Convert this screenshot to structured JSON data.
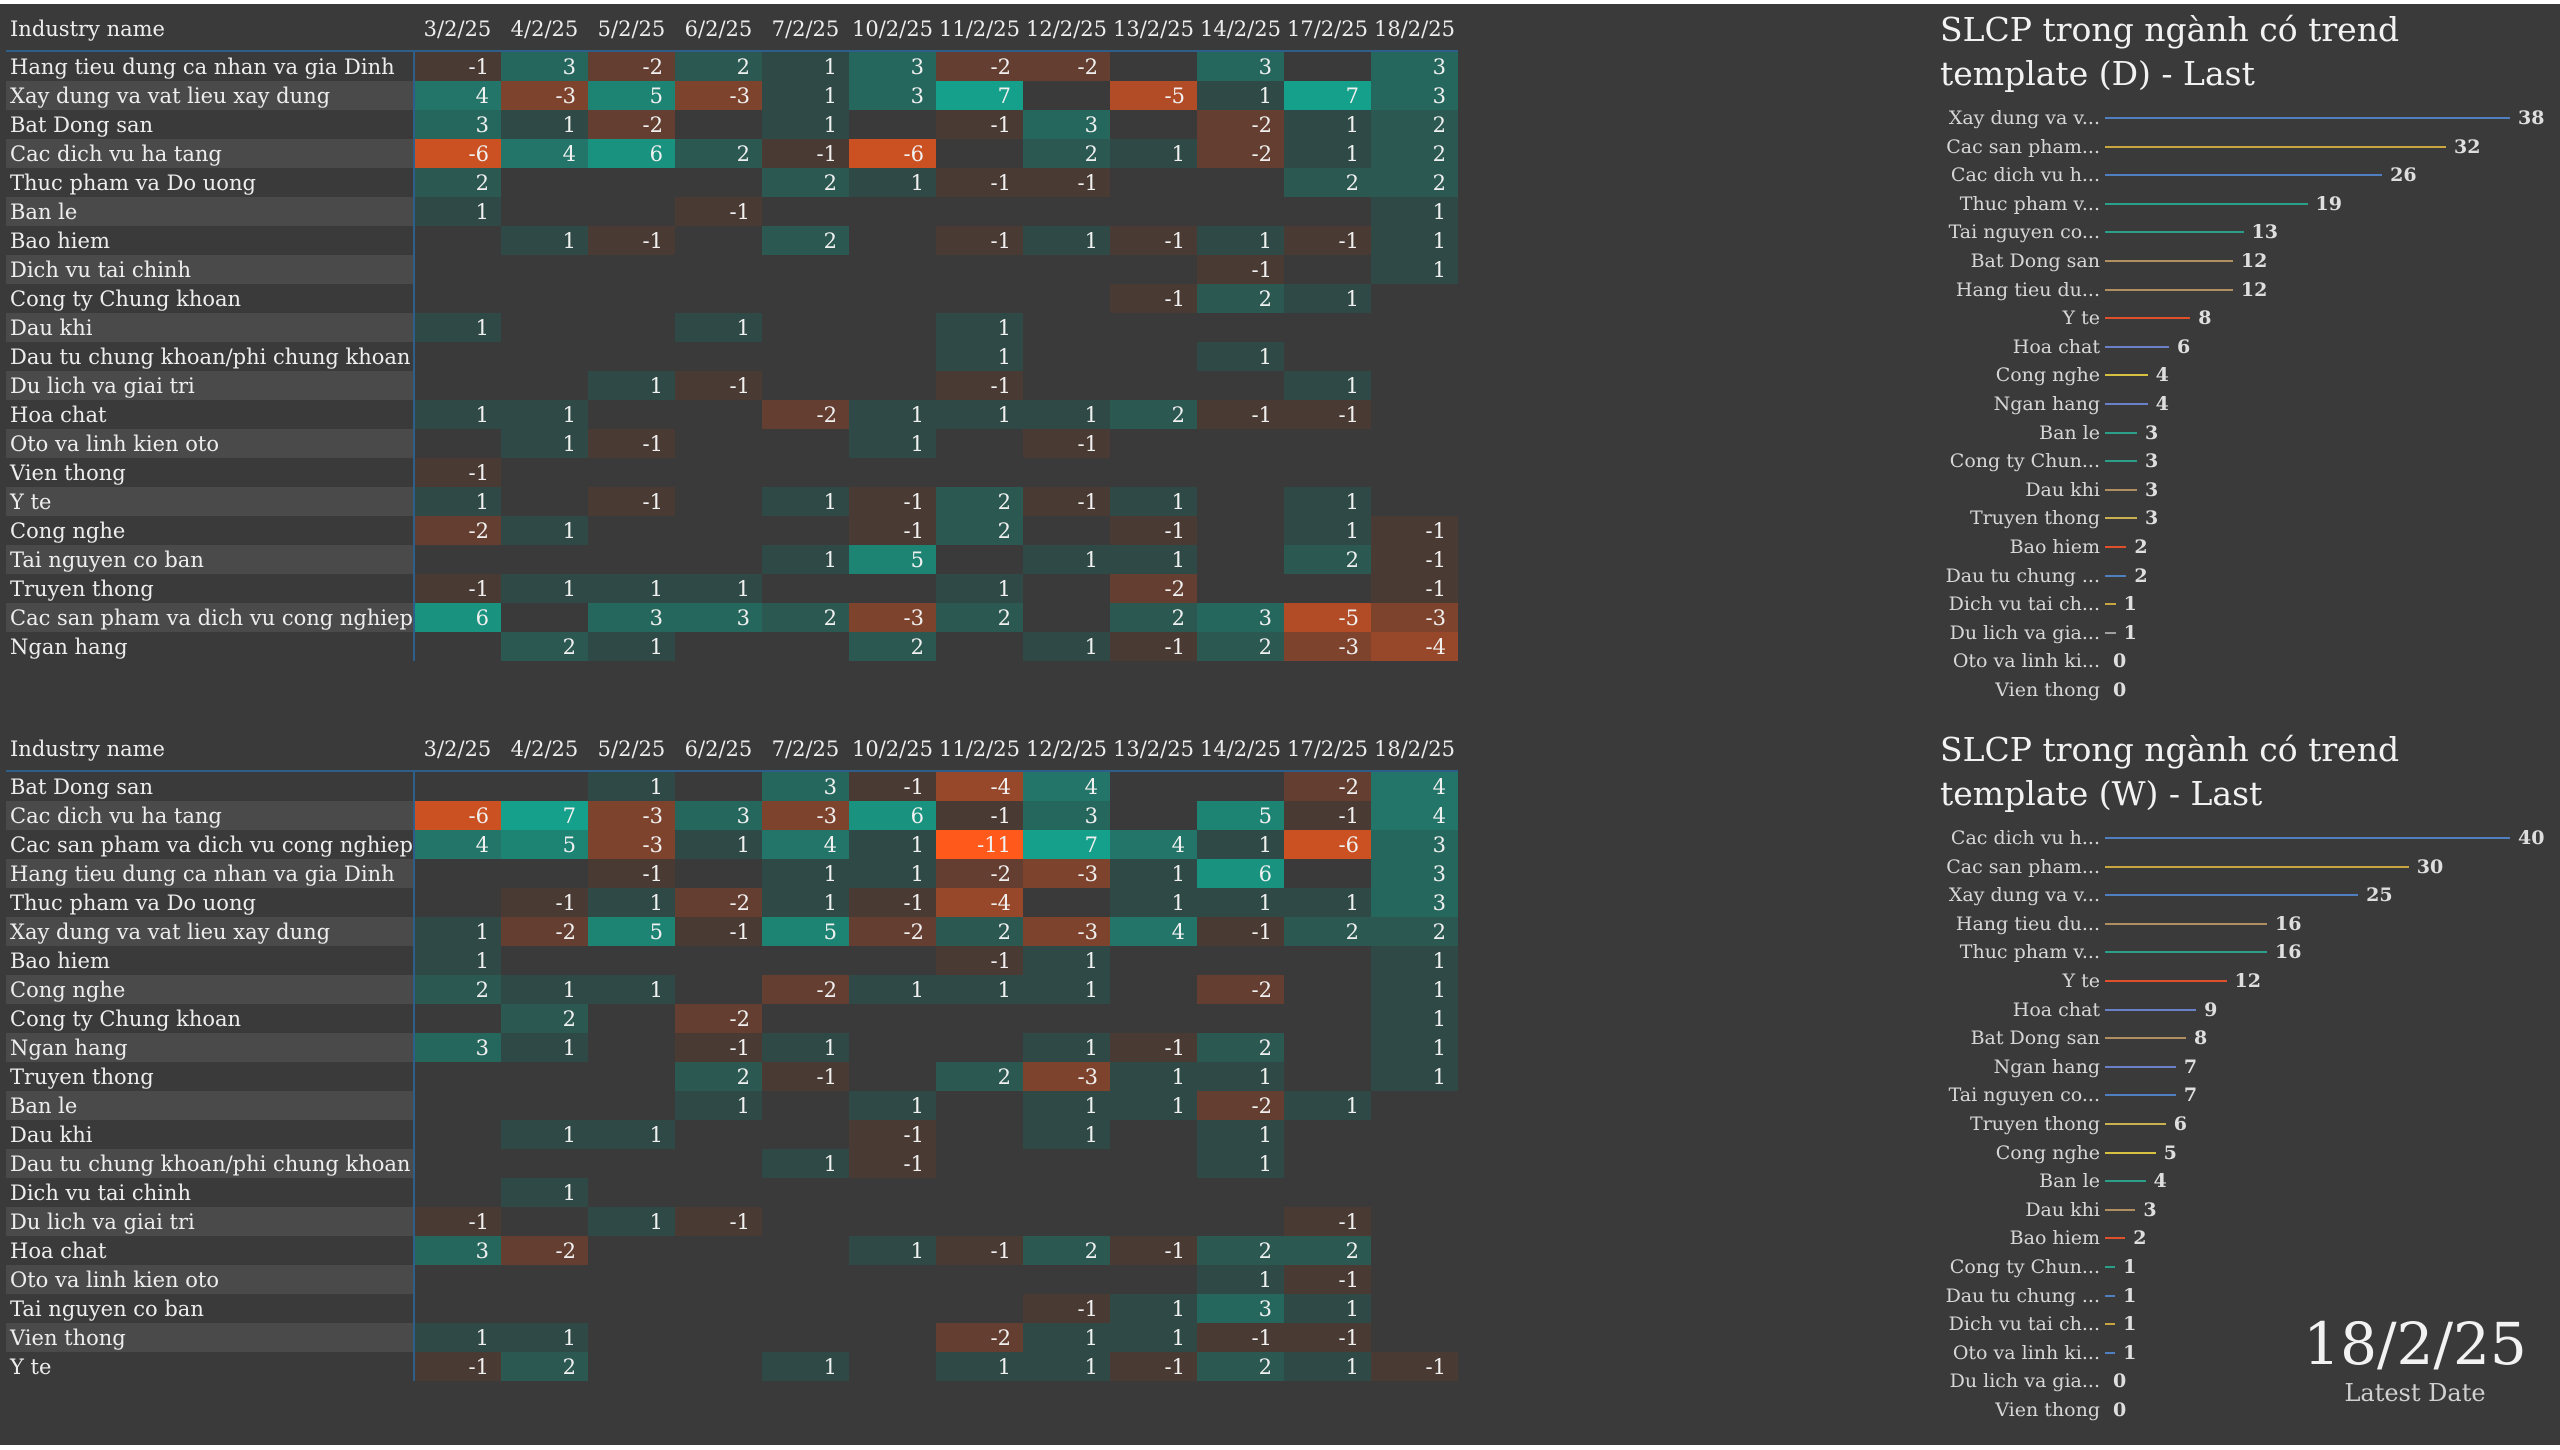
{
  "colors": {
    "pos_max": "#14a08a",
    "neg_max": "#ff5a1c",
    "pos_base": "#2f4a46",
    "neg_base": "#4a3a34"
  },
  "table_d": {
    "header_name": "Industry name",
    "dates": [
      "3/2/25",
      "4/2/25",
      "5/2/25",
      "6/2/25",
      "7/2/25",
      "10/2/25",
      "11/2/25",
      "12/2/25",
      "13/2/25",
      "14/2/25",
      "17/2/25",
      "18/2/25"
    ],
    "rows": [
      {
        "name": "Hang tieu dung ca nhan va gia Dinh",
        "values": [
          "-1",
          "3",
          "-2",
          "2",
          "1",
          "3",
          "-2",
          "-2",
          "",
          "3",
          "",
          "3"
        ]
      },
      {
        "name": "Xay dung va vat lieu xay dung",
        "values": [
          "4",
          "-3",
          "5",
          "-3",
          "1",
          "3",
          "7",
          "",
          "-5",
          "1",
          "7",
          "3"
        ]
      },
      {
        "name": "Bat Dong san",
        "values": [
          "3",
          "1",
          "-2",
          "",
          "1",
          "",
          "-1",
          "3",
          "",
          "-2",
          "1",
          "2"
        ]
      },
      {
        "name": "Cac dich vu ha tang",
        "values": [
          "-6",
          "4",
          "6",
          "2",
          "-1",
          "-6",
          "",
          "2",
          "1",
          "-2",
          "1",
          "2"
        ]
      },
      {
        "name": "Thuc pham va Do uong",
        "values": [
          "2",
          "",
          "",
          "",
          "2",
          "1",
          "-1",
          "-1",
          "",
          "",
          "2",
          "2"
        ]
      },
      {
        "name": "Ban le",
        "values": [
          "1",
          "",
          "",
          "-1",
          "",
          "",
          "",
          "",
          "",
          "",
          "",
          "1"
        ]
      },
      {
        "name": "Bao hiem",
        "values": [
          "",
          "1",
          "-1",
          "",
          "2",
          "",
          "-1",
          "1",
          "-1",
          "1",
          "-1",
          "1"
        ]
      },
      {
        "name": "Dich vu tai chinh",
        "values": [
          "",
          "",
          "",
          "",
          "",
          "",
          "",
          "",
          "",
          "-1",
          "",
          "1"
        ]
      },
      {
        "name": "Cong ty Chung khoan",
        "values": [
          "",
          "",
          "",
          "",
          "",
          "",
          "",
          "",
          "-1",
          "2",
          "1",
          ""
        ]
      },
      {
        "name": "Dau khi",
        "values": [
          "1",
          "",
          "",
          "1",
          "",
          "",
          "1",
          "",
          "",
          "",
          "",
          ""
        ]
      },
      {
        "name": "Dau tu chung khoan/phi chung khoan",
        "values": [
          "",
          "",
          "",
          "",
          "",
          "",
          "1",
          "",
          "",
          "1",
          "",
          ""
        ]
      },
      {
        "name": "Du lich va giai tri",
        "values": [
          "",
          "",
          "1",
          "-1",
          "",
          "",
          "-1",
          "",
          "",
          "",
          "1",
          ""
        ]
      },
      {
        "name": "Hoa chat",
        "values": [
          "1",
          "1",
          "",
          "",
          "-2",
          "1",
          "1",
          "1",
          "2",
          "-1",
          "-1",
          ""
        ]
      },
      {
        "name": "Oto va linh kien oto",
        "values": [
          "",
          "1",
          "-1",
          "",
          "",
          "1",
          "",
          "-1",
          "",
          "",
          "",
          ""
        ]
      },
      {
        "name": "Vien thong",
        "values": [
          "-1",
          "",
          "",
          "",
          "",
          "",
          "",
          "",
          "",
          "",
          "",
          ""
        ]
      },
      {
        "name": "Y te",
        "values": [
          "1",
          "",
          "-1",
          "",
          "1",
          "-1",
          "2",
          "-1",
          "1",
          "",
          "1",
          ""
        ]
      },
      {
        "name": "Cong nghe",
        "values": [
          "-2",
          "1",
          "",
          "",
          "",
          "-1",
          "2",
          "",
          "-1",
          "",
          "1",
          "-1"
        ]
      },
      {
        "name": "Tai nguyen co ban",
        "values": [
          "",
          "",
          "",
          "",
          "1",
          "5",
          "",
          "1",
          "1",
          "",
          "2",
          "-1"
        ]
      },
      {
        "name": "Truyen thong",
        "values": [
          "-1",
          "1",
          "1",
          "1",
          "",
          "",
          "1",
          "",
          "-2",
          "",
          "",
          "-1"
        ]
      },
      {
        "name": "Cac san pham va dich vu cong nghiep",
        "values": [
          "6",
          "",
          "3",
          "3",
          "2",
          "-3",
          "2",
          "",
          "2",
          "3",
          "-5",
          "-3"
        ]
      },
      {
        "name": "Ngan hang",
        "values": [
          "",
          "2",
          "1",
          "",
          "",
          "2",
          "",
          "1",
          "-1",
          "2",
          "-3",
          "-4"
        ]
      }
    ]
  },
  "table_w": {
    "header_name": "Industry name",
    "dates": [
      "3/2/25",
      "4/2/25",
      "5/2/25",
      "6/2/25",
      "7/2/25",
      "10/2/25",
      "11/2/25",
      "12/2/25",
      "13/2/25",
      "14/2/25",
      "17/2/25",
      "18/2/25"
    ],
    "rows": [
      {
        "name": "Bat Dong san",
        "values": [
          "",
          "",
          "1",
          "",
          "3",
          "-1",
          "-4",
          "4",
          "",
          "",
          "-2",
          "4"
        ]
      },
      {
        "name": "Cac dich vu ha tang",
        "values": [
          "-6",
          "7",
          "-3",
          "3",
          "-3",
          "6",
          "-1",
          "3",
          "",
          "5",
          "-1",
          "4"
        ]
      },
      {
        "name": "Cac san pham va dich vu cong nghiep",
        "values": [
          "4",
          "5",
          "-3",
          "1",
          "4",
          "1",
          "-11",
          "7",
          "4",
          "1",
          "-6",
          "3"
        ]
      },
      {
        "name": "Hang tieu dung ca nhan va gia Dinh",
        "values": [
          "",
          "",
          "-1",
          "",
          "1",
          "1",
          "-2",
          "-3",
          "1",
          "6",
          "",
          "3"
        ]
      },
      {
        "name": "Thuc pham va Do uong",
        "values": [
          "",
          "-1",
          "1",
          "-2",
          "1",
          "-1",
          "-4",
          "",
          "1",
          "1",
          "1",
          "3"
        ]
      },
      {
        "name": "Xay dung va vat lieu xay dung",
        "values": [
          "1",
          "-2",
          "5",
          "-1",
          "5",
          "-2",
          "2",
          "-3",
          "4",
          "-1",
          "2",
          "2"
        ]
      },
      {
        "name": "Bao hiem",
        "values": [
          "1",
          "",
          "",
          "",
          "",
          "",
          "-1",
          "1",
          "",
          "",
          "",
          "1"
        ]
      },
      {
        "name": "Cong nghe",
        "values": [
          "2",
          "1",
          "1",
          "",
          "-2",
          "1",
          "1",
          "1",
          "",
          "-2",
          "",
          "1"
        ]
      },
      {
        "name": "Cong ty Chung khoan",
        "values": [
          "",
          "2",
          "",
          "-2",
          "",
          "",
          "",
          "",
          "",
          "",
          "",
          "1"
        ]
      },
      {
        "name": "Ngan hang",
        "values": [
          "3",
          "1",
          "",
          "-1",
          "1",
          "",
          "",
          "1",
          "-1",
          "2",
          "",
          "1"
        ]
      },
      {
        "name": "Truyen thong",
        "values": [
          "",
          "",
          "",
          "2",
          "-1",
          "",
          "2",
          "-3",
          "1",
          "1",
          "",
          "1"
        ]
      },
      {
        "name": "Ban le",
        "values": [
          "",
          "",
          "",
          "1",
          "",
          "1",
          "",
          "1",
          "1",
          "-2",
          "1",
          ""
        ]
      },
      {
        "name": "Dau khi",
        "values": [
          "",
          "1",
          "1",
          "",
          "",
          "-1",
          "",
          "1",
          "",
          "1",
          "",
          ""
        ]
      },
      {
        "name": "Dau tu chung khoan/phi chung khoan",
        "values": [
          "",
          "",
          "",
          "",
          "1",
          "-1",
          "",
          "",
          "",
          "1",
          "",
          ""
        ]
      },
      {
        "name": "Dich vu tai chinh",
        "values": [
          "",
          "1",
          "",
          "",
          "",
          "",
          "",
          "",
          "",
          "",
          "",
          ""
        ]
      },
      {
        "name": "Du lich va giai tri",
        "values": [
          "-1",
          "",
          "1",
          "-1",
          "",
          "",
          "",
          "",
          "",
          "",
          "-1",
          ""
        ]
      },
      {
        "name": "Hoa chat",
        "values": [
          "3",
          "-2",
          "",
          "",
          "",
          "1",
          "-1",
          "2",
          "-1",
          "2",
          "2",
          ""
        ]
      },
      {
        "name": "Oto va linh kien oto",
        "values": [
          "",
          "",
          "",
          "",
          "",
          "",
          "",
          "",
          "",
          "1",
          "-1",
          ""
        ]
      },
      {
        "name": "Tai nguyen co ban",
        "values": [
          "",
          "",
          "",
          "",
          "",
          "",
          "",
          "-1",
          "1",
          "3",
          "1",
          ""
        ]
      },
      {
        "name": "Vien thong",
        "values": [
          "1",
          "1",
          "",
          "",
          "",
          "",
          "-2",
          "1",
          "1",
          "-1",
          "-1",
          ""
        ]
      },
      {
        "name": "Y te",
        "values": [
          "-1",
          "2",
          "",
          "",
          "1",
          "",
          "1",
          "1",
          "-1",
          "2",
          "1",
          "-1"
        ]
      }
    ]
  },
  "panel_d": {
    "title": "SLCP trong ngành có trend template (D) - Last",
    "chart_data": {
      "type": "bar",
      "categories": [
        "Xay dung va v...",
        "Cac san pham...",
        "Cac dich vu h...",
        "Thuc pham v...",
        "Tai nguyen co...",
        "Bat Dong san",
        "Hang tieu du...",
        "Y te",
        "Hoa chat",
        "Cong nghe",
        "Ngan hang",
        "Ban le",
        "Cong ty Chun...",
        "Dau khi",
        "Truyen thong",
        "Bao hiem",
        "Dau tu chung ...",
        "Dich vu tai ch...",
        "Du lich va gia...",
        "Oto va linh ki...",
        "Vien thong"
      ],
      "values": [
        38,
        32,
        26,
        19,
        13,
        12,
        12,
        8,
        6,
        4,
        4,
        3,
        3,
        3,
        3,
        2,
        2,
        1,
        1,
        0,
        0
      ],
      "colors": [
        "#4f7fc0",
        "#c9a640",
        "#4f7fc0",
        "#2aa08a",
        "#2aa08a",
        "#b09060",
        "#b09060",
        "#e0502a",
        "#6a80c8",
        "#d8c040",
        "#6a80c8",
        "#2aa08a",
        "#2aa08a",
        "#b09060",
        "#c9b050",
        "#e0502a",
        "#4f7fc0",
        "#c9a640",
        "#a0a0a0",
        "#4f7fc0",
        "#a0a0a0"
      ],
      "xmax": 38
    }
  },
  "panel_w": {
    "title": "SLCP trong ngành có trend template (W) - Last",
    "chart_data": {
      "type": "bar",
      "categories": [
        "Cac dich vu h...",
        "Cac san pham...",
        "Xay dung va v...",
        "Hang tieu du...",
        "Thuc pham v...",
        "Y te",
        "Hoa chat",
        "Bat Dong san",
        "Ngan hang",
        "Tai nguyen co...",
        "Truyen thong",
        "Cong nghe",
        "Ban le",
        "Dau khi",
        "Bao hiem",
        "Cong ty Chun...",
        "Dau tu chung ...",
        "Dich vu tai ch...",
        "Oto va linh ki...",
        "Du lich va gia...",
        "Vien thong"
      ],
      "values": [
        40,
        30,
        25,
        16,
        16,
        12,
        9,
        8,
        7,
        7,
        6,
        5,
        4,
        3,
        2,
        1,
        1,
        1,
        1,
        0,
        0
      ],
      "colors": [
        "#4f7fc0",
        "#c9a640",
        "#4f7fc0",
        "#b09060",
        "#2aa08a",
        "#e0502a",
        "#6a80c8",
        "#b09060",
        "#6a80c8",
        "#4f7fc0",
        "#c9b050",
        "#d8c040",
        "#2aa08a",
        "#b09060",
        "#e0502a",
        "#2aa08a",
        "#4f7fc0",
        "#c9a640",
        "#4f7fc0",
        "#a0a0a0",
        "#a0a0a0"
      ],
      "xmax": 40
    }
  },
  "latest": {
    "date": "18/2/25",
    "caption": "Latest Date"
  }
}
